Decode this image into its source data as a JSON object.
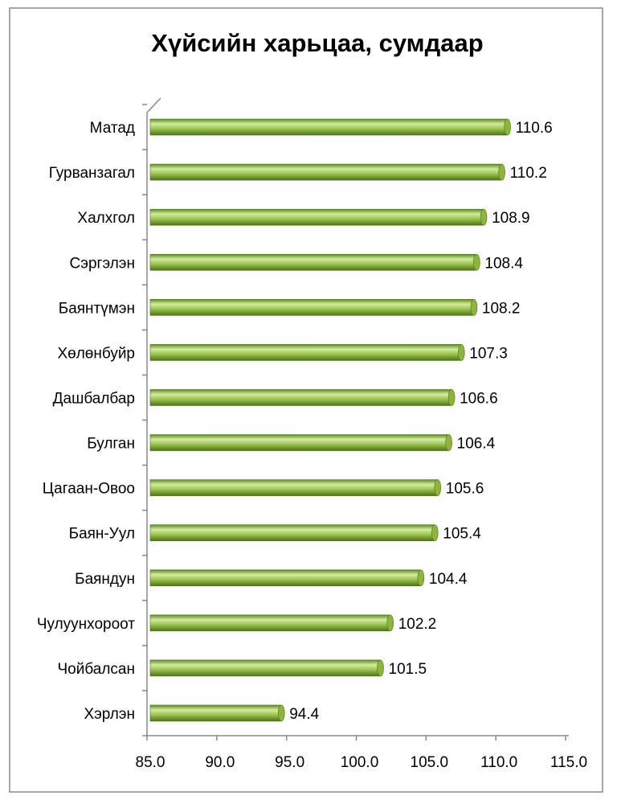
{
  "chart_data": {
    "type": "bar",
    "orientation": "horizontal",
    "title": "Хүйсийн харьцаа, сумдаар",
    "categories": [
      "Матад",
      "Гурванзагал",
      "Халхгол",
      "Сэргэлэн",
      "Баянтүмэн",
      "Хөлөнбуйр",
      "Дашбалбар",
      "Булган",
      "Цагаан-Овоо",
      "Баян-Уул",
      "Баяндун",
      "Чулуунхороот",
      "Чойбалсан",
      "Хэрлэн"
    ],
    "values": [
      110.6,
      110.2,
      108.9,
      108.4,
      108.2,
      107.3,
      106.6,
      106.4,
      105.6,
      105.4,
      104.4,
      102.2,
      101.5,
      94.4
    ],
    "color": "#8db53c",
    "xlim": [
      85,
      115
    ],
    "xticks": [
      {
        "value": 85,
        "label": "85.0"
      },
      {
        "value": 90,
        "label": "90.0"
      },
      {
        "value": 95,
        "label": "95.0"
      },
      {
        "value": 100,
        "label": "100.0"
      },
      {
        "value": 105,
        "label": "105.0"
      },
      {
        "value": 110,
        "label": "110.0"
      },
      {
        "value": 115,
        "label": "115.0"
      }
    ]
  }
}
